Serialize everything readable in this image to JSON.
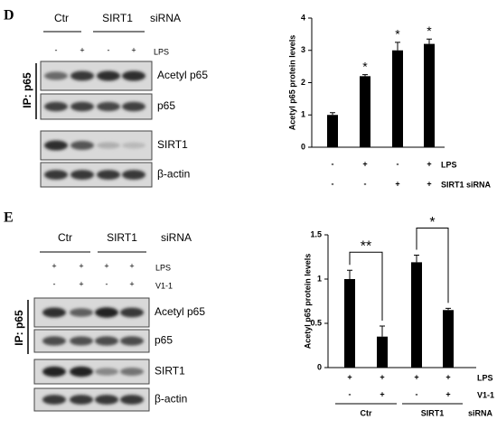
{
  "panel_labels": [
    "D",
    "E"
  ],
  "blots": [
    {
      "groups": [
        "Ctr",
        "SIRT1"
      ],
      "group_suffix": "siRNA",
      "conditions": [
        {
          "name": "LPS",
          "signs": [
            "-",
            "+",
            "-",
            "+"
          ]
        }
      ],
      "ip_label": "IP: p65",
      "bands": [
        "Acetyl p65",
        "p65",
        "SIRT1",
        "β-actin"
      ]
    },
    {
      "groups": [
        "Ctr",
        "SIRT1"
      ],
      "group_suffix": "siRNA",
      "conditions": [
        {
          "name": "LPS",
          "signs": [
            "+",
            "+",
            "+",
            "+"
          ]
        },
        {
          "name": "V1-1",
          "signs": [
            "-",
            "+",
            "-",
            "+"
          ]
        }
      ],
      "ip_label": "IP: p65",
      "bands": [
        "Acetyl p65",
        "p65",
        "SIRT1",
        "β-actin"
      ]
    }
  ],
  "chart_data": [
    {
      "type": "bar",
      "y_label": "Acetyl p65 protein levels",
      "values": [
        1.0,
        2.2,
        3.0,
        3.2
      ],
      "errors": [
        0.07,
        0.05,
        0.25,
        0.15
      ],
      "color": "#000000",
      "ylim": [
        0,
        4
      ],
      "yticks": [
        0,
        1,
        2,
        3,
        4
      ],
      "bar_labels": [
        null,
        "*",
        "*",
        "*"
      ],
      "conditions": [
        {
          "name": "LPS",
          "signs": [
            "-",
            "+",
            "-",
            "+"
          ]
        },
        {
          "name": "SIRT1 siRNA",
          "signs": [
            "-",
            "-",
            "+",
            "+"
          ]
        }
      ]
    },
    {
      "type": "bar",
      "y_label": "Acetyl p65 protein levels",
      "values": [
        1.0,
        0.35,
        1.19,
        0.65
      ],
      "errors": [
        0.1,
        0.12,
        0.08,
        0.02
      ],
      "color": "#000000",
      "ylim": [
        0,
        1.5
      ],
      "yticks": [
        0,
        0.5,
        1,
        1.5
      ],
      "significance": [
        "**",
        "*"
      ],
      "conditions": [
        {
          "name": "LPS",
          "signs": [
            "+",
            "+",
            "+",
            "+"
          ]
        },
        {
          "name": "V1-1",
          "signs": [
            "-",
            "+",
            "-",
            "+"
          ]
        }
      ],
      "groups": [
        "Ctr",
        "SIRT1"
      ],
      "group_suffix": "siRNA"
    }
  ]
}
